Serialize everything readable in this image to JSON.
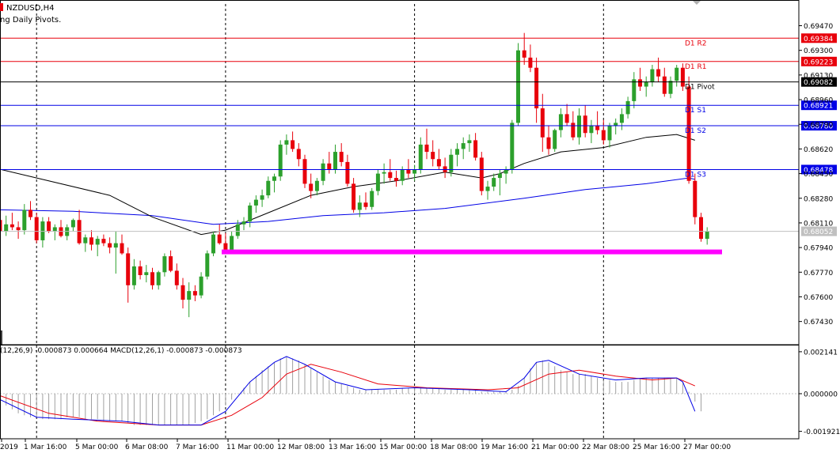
{
  "window": {
    "symbol": "NZDUSD,H4",
    "indicator_label": "ng Daily Pivots.",
    "macd_label": "(12,26,9) -0.000873 0.000664 MACD(12,26,1) -0.000873 -0.000873"
  },
  "colors": {
    "bull": "#2ca02c",
    "bear": "#e8000b",
    "resistance": "#e8000b",
    "support": "#0000e6",
    "pivot": "#000000",
    "ma_fast": "#000000",
    "ma_slow": "#0000e6",
    "support_zone": "#ff00ff",
    "macd_line": "#0000e6",
    "signal_line": "#e8000b",
    "histogram": "#a0a0a0"
  },
  "chart_data": {
    "type": "candlestick",
    "price_axis_ticks": [
      0.6947,
      0.693,
      0.6913,
      0.6896,
      0.6879,
      0.6862,
      0.6845,
      0.6828,
      0.6811,
      0.6794,
      0.6777,
      0.676,
      0.6743
    ],
    "price_axis_ticks_text": [
      "0.69470",
      "0.69300",
      "0.69130",
      "0.68960",
      "0.68790",
      "0.68620",
      "0.68450",
      "0.68280",
      "0.68110",
      "0.67940",
      "0.67770",
      "0.67600",
      "0.67430"
    ],
    "ylim": [
      0.6727,
      0.6962
    ],
    "time_ticks": [
      "2019",
      "1 Mar 16:00",
      "5 Mar 00:00",
      "6 Mar 08:00",
      "7 Mar 16:00",
      "11 Mar 00:00",
      "12 Mar 08:00",
      "13 Mar 16:00",
      "15 Mar 00:00",
      "18 Mar 08:00",
      "19 Mar 16:00",
      "21 Mar 00:00",
      "22 Mar 08:00",
      "25 Mar 16:00",
      "27 Mar 00:00"
    ],
    "levels": [
      {
        "name": "D1 R2",
        "value": 0.69384,
        "value_text": "0.69384",
        "kind": "resistance"
      },
      {
        "name": "D1 R1",
        "value": 0.69223,
        "value_text": "0.69223",
        "kind": "resistance"
      },
      {
        "name": "D1 Pivot",
        "value": 0.69082,
        "value_text": "0.69082",
        "kind": "pivot"
      },
      {
        "name": "D1 S1",
        "value": 0.68921,
        "value_text": "0.68921",
        "kind": "support"
      },
      {
        "name": "D1 S2",
        "value": 0.6878,
        "value_text": "0.68780",
        "kind": "support"
      },
      {
        "name": "D1 S3",
        "value": 0.68478,
        "value_text": "0.68478",
        "kind": "support"
      }
    ],
    "current_price": 0.68052,
    "current_price_text": "0.68052",
    "support_zone_price": 0.6791,
    "candles": [
      [
        0.6813,
        0.682,
        0.6806,
        0.6805
      ],
      [
        0.6805,
        0.6816,
        0.6802,
        0.681
      ],
      [
        0.681,
        0.6818,
        0.6806,
        0.6808
      ],
      [
        0.6808,
        0.6812,
        0.68,
        0.6806
      ],
      [
        0.6806,
        0.6824,
        0.6803,
        0.682
      ],
      [
        0.682,
        0.6826,
        0.6813,
        0.6815
      ],
      [
        0.6815,
        0.6818,
        0.6797,
        0.6799
      ],
      [
        0.6799,
        0.6815,
        0.6794,
        0.6812
      ],
      [
        0.6812,
        0.6815,
        0.6804,
        0.6805
      ],
      [
        0.6805,
        0.681,
        0.6799,
        0.6808
      ],
      [
        0.6808,
        0.6813,
        0.6801,
        0.6802
      ],
      [
        0.6802,
        0.681,
        0.6799,
        0.6808
      ],
      [
        0.6808,
        0.6814,
        0.6805,
        0.6813
      ],
      [
        0.6813,
        0.682,
        0.6796,
        0.6797
      ],
      [
        0.6797,
        0.6803,
        0.6791,
        0.6801
      ],
      [
        0.6801,
        0.6806,
        0.6792,
        0.6796
      ],
      [
        0.6796,
        0.6802,
        0.6788,
        0.68
      ],
      [
        0.68,
        0.6803,
        0.6795,
        0.6797
      ],
      [
        0.6797,
        0.6801,
        0.679,
        0.6794
      ],
      [
        0.6794,
        0.6805,
        0.6776,
        0.6797
      ],
      [
        0.6797,
        0.6803,
        0.6789,
        0.679
      ],
      [
        0.679,
        0.6794,
        0.6756,
        0.6768
      ],
      [
        0.6768,
        0.6786,
        0.6765,
        0.6781
      ],
      [
        0.6781,
        0.6785,
        0.6772,
        0.6775
      ],
      [
        0.6775,
        0.6782,
        0.677,
        0.6777
      ],
      [
        0.6777,
        0.678,
        0.6765,
        0.6768
      ],
      [
        0.6768,
        0.6778,
        0.6765,
        0.6777
      ],
      [
        0.6777,
        0.679,
        0.6774,
        0.6788
      ],
      [
        0.6788,
        0.6792,
        0.6777,
        0.6778
      ],
      [
        0.6778,
        0.6783,
        0.6765,
        0.6768
      ],
      [
        0.6768,
        0.6773,
        0.6752,
        0.6758
      ],
      [
        0.6758,
        0.677,
        0.6746,
        0.6764
      ],
      [
        0.6764,
        0.6768,
        0.6757,
        0.6761
      ],
      [
        0.6761,
        0.6777,
        0.6759,
        0.6774
      ],
      [
        0.6774,
        0.6792,
        0.6772,
        0.679
      ],
      [
        0.679,
        0.6805,
        0.6788,
        0.6803
      ],
      [
        0.6803,
        0.681,
        0.6796,
        0.6797
      ],
      [
        0.6797,
        0.6804,
        0.679,
        0.6792
      ],
      [
        0.6792,
        0.6805,
        0.679,
        0.6802
      ],
      [
        0.6802,
        0.6813,
        0.68,
        0.681
      ],
      [
        0.681,
        0.6815,
        0.6806,
        0.6812
      ],
      [
        0.6812,
        0.6825,
        0.6808,
        0.6823
      ],
      [
        0.6823,
        0.683,
        0.6818,
        0.6827
      ],
      [
        0.6827,
        0.6834,
        0.6822,
        0.683
      ],
      [
        0.683,
        0.6843,
        0.6828,
        0.684
      ],
      [
        0.684,
        0.6845,
        0.6832,
        0.6843
      ],
      [
        0.6843,
        0.6868,
        0.684,
        0.6865
      ],
      [
        0.6865,
        0.6872,
        0.6858,
        0.6868
      ],
      [
        0.6868,
        0.6874,
        0.686,
        0.6862
      ],
      [
        0.6862,
        0.6866,
        0.685,
        0.6855
      ],
      [
        0.6855,
        0.6858,
        0.6835,
        0.6838
      ],
      [
        0.6838,
        0.6845,
        0.6828,
        0.6833
      ],
      [
        0.6833,
        0.6842,
        0.683,
        0.684
      ],
      [
        0.684,
        0.6855,
        0.6837,
        0.6852
      ],
      [
        0.6852,
        0.686,
        0.6845,
        0.6848
      ],
      [
        0.6848,
        0.6865,
        0.6845,
        0.686
      ],
      [
        0.686,
        0.6866,
        0.685,
        0.6853
      ],
      [
        0.6853,
        0.6858,
        0.6836,
        0.6838
      ],
      [
        0.6838,
        0.6842,
        0.6818,
        0.682
      ],
      [
        0.682,
        0.683,
        0.6815,
        0.6825
      ],
      [
        0.6825,
        0.6832,
        0.682,
        0.6822
      ],
      [
        0.6822,
        0.6835,
        0.682,
        0.6833
      ],
      [
        0.6833,
        0.6848,
        0.683,
        0.6845
      ],
      [
        0.6845,
        0.6852,
        0.6838,
        0.6846
      ],
      [
        0.6846,
        0.6855,
        0.684,
        0.6842
      ],
      [
        0.6842,
        0.6847,
        0.6836,
        0.684
      ],
      [
        0.684,
        0.685,
        0.6837,
        0.6848
      ],
      [
        0.6848,
        0.6855,
        0.6842,
        0.6845
      ],
      [
        0.6845,
        0.6851,
        0.684,
        0.6848
      ],
      [
        0.6848,
        0.687,
        0.6845,
        0.6865
      ],
      [
        0.6865,
        0.6876,
        0.6855,
        0.686
      ],
      [
        0.686,
        0.6868,
        0.685,
        0.6855
      ],
      [
        0.6855,
        0.6862,
        0.6848,
        0.685
      ],
      [
        0.685,
        0.6856,
        0.6842,
        0.6846
      ],
      [
        0.6846,
        0.6862,
        0.6843,
        0.6858
      ],
      [
        0.6858,
        0.6866,
        0.685,
        0.6862
      ],
      [
        0.6862,
        0.687,
        0.6855,
        0.6866
      ],
      [
        0.6866,
        0.6872,
        0.686,
        0.6868
      ],
      [
        0.6868,
        0.6873,
        0.6854,
        0.6856
      ],
      [
        0.6856,
        0.686,
        0.683,
        0.6833
      ],
      [
        0.6833,
        0.684,
        0.6827,
        0.6836
      ],
      [
        0.6836,
        0.6845,
        0.6833,
        0.6842
      ],
      [
        0.6842,
        0.6848,
        0.683,
        0.6845
      ],
      [
        0.6845,
        0.685,
        0.6838,
        0.6848
      ],
      [
        0.6848,
        0.6882,
        0.6845,
        0.688
      ],
      [
        0.688,
        0.6935,
        0.6878,
        0.693
      ],
      [
        0.693,
        0.6942,
        0.692,
        0.6925
      ],
      [
        0.6925,
        0.6934,
        0.6915,
        0.6918
      ],
      [
        0.6918,
        0.6925,
        0.688,
        0.689
      ],
      [
        0.689,
        0.69,
        0.686,
        0.687
      ],
      [
        0.687,
        0.6878,
        0.6858,
        0.6862
      ],
      [
        0.6862,
        0.6876,
        0.686,
        0.6875
      ],
      [
        0.6875,
        0.689,
        0.687,
        0.6886
      ],
      [
        0.6886,
        0.6893,
        0.6878,
        0.688
      ],
      [
        0.688,
        0.6888,
        0.6868,
        0.687
      ],
      [
        0.687,
        0.689,
        0.6865,
        0.6885
      ],
      [
        0.6885,
        0.6892,
        0.687,
        0.6873
      ],
      [
        0.6873,
        0.6882,
        0.6866,
        0.6878
      ],
      [
        0.6878,
        0.6888,
        0.6872,
        0.6875
      ],
      [
        0.6875,
        0.6882,
        0.6865,
        0.6868
      ],
      [
        0.6868,
        0.688,
        0.6863,
        0.6878
      ],
      [
        0.6878,
        0.6883,
        0.6872,
        0.688
      ],
      [
        0.688,
        0.689,
        0.6875,
        0.6886
      ],
      [
        0.6886,
        0.6898,
        0.6883,
        0.6895
      ],
      [
        0.6895,
        0.6915,
        0.689,
        0.691
      ],
      [
        0.691,
        0.6918,
        0.6902,
        0.6905
      ],
      [
        0.6905,
        0.6912,
        0.6898,
        0.6908
      ],
      [
        0.6908,
        0.692,
        0.6905,
        0.6917
      ],
      [
        0.6917,
        0.6925,
        0.6908,
        0.6912
      ],
      [
        0.6912,
        0.6918,
        0.6898,
        0.69
      ],
      [
        0.69,
        0.6912,
        0.6897,
        0.6909
      ],
      [
        0.6909,
        0.692,
        0.6905,
        0.6918
      ],
      [
        0.6918,
        0.6921,
        0.6902,
        0.6905
      ],
      [
        0.6905,
        0.6912,
        0.6838,
        0.684
      ],
      [
        0.684,
        0.6845,
        0.681,
        0.6815
      ],
      [
        0.6815,
        0.6818,
        0.6798,
        0.68
      ],
      [
        0.68,
        0.6808,
        0.6796,
        0.6805
      ]
    ],
    "ma_fast": [
      [
        0,
        0.6848
      ],
      [
        18,
        0.683
      ],
      [
        25,
        0.6815
      ],
      [
        33,
        0.6803
      ],
      [
        37,
        0.6806
      ],
      [
        44,
        0.6818
      ],
      [
        51,
        0.683
      ],
      [
        58,
        0.6836
      ],
      [
        65,
        0.684
      ],
      [
        73,
        0.6846
      ],
      [
        79,
        0.6842
      ],
      [
        82,
        0.6845
      ],
      [
        86,
        0.6852
      ],
      [
        92,
        0.686
      ],
      [
        99,
        0.6863
      ],
      [
        106,
        0.687
      ],
      [
        111,
        0.6872
      ],
      [
        114,
        0.6868
      ]
    ],
    "ma_slow": [
      [
        0,
        0.682
      ],
      [
        12,
        0.6819
      ],
      [
        25,
        0.6816
      ],
      [
        35,
        0.681
      ],
      [
        44,
        0.6812
      ],
      [
        53,
        0.6816
      ],
      [
        63,
        0.6818
      ],
      [
        73,
        0.6821
      ],
      [
        86,
        0.6828
      ],
      [
        96,
        0.6834
      ],
      [
        106,
        0.6838
      ],
      [
        113,
        0.6842
      ],
      [
        114,
        0.6841
      ]
    ],
    "macd": {
      "ticks": [
        0.002141,
        0.0,
        -0.001921
      ],
      "ticks_text": [
        "0.002141",
        "0.000000",
        "-0.001921"
      ],
      "ylim": [
        -0.0023,
        0.0025
      ],
      "histogram": [
        -0.0003,
        -0.0006,
        -0.0008,
        -0.001,
        -0.0011,
        -0.0012,
        -0.0012,
        -0.0013,
        -0.0013,
        -0.0013,
        -0.0013,
        -0.0012,
        -0.0012,
        -0.0012,
        -0.0013,
        -0.0013,
        -0.0013,
        -0.0014,
        -0.0014,
        -0.0014,
        -0.0014,
        -0.0015,
        -0.0016,
        -0.0016,
        -0.0016,
        -0.0016,
        -0.0016,
        -0.0016,
        -0.0016,
        -0.0016,
        -0.0016,
        -0.0016,
        -0.0015,
        -0.0014,
        -0.0013,
        -0.0011,
        -0.0009,
        -0.0006,
        -0.0003,
        0.0,
        0.0003,
        0.0006,
        0.0009,
        0.0012,
        0.0014,
        0.0016,
        0.0018,
        0.0019,
        0.0018,
        0.0017,
        0.0015,
        0.0013,
        0.0011,
        0.0009,
        0.0007,
        0.0006,
        0.0005,
        0.0004,
        0.0003,
        0.0002,
        0.0002,
        0.0002,
        0.0002,
        0.0002,
        0.0002,
        0.0002,
        0.0003,
        0.0003,
        0.0003,
        0.0003,
        0.0003,
        0.0003,
        0.0003,
        0.0002,
        0.0002,
        0.0002,
        0.0002,
        0.0002,
        0.0002,
        0.0001,
        0.0001,
        0.0001,
        0.0001,
        0.0001,
        0.0002,
        0.0004,
        0.0008,
        0.0013,
        0.0016,
        0.0017,
        0.0016,
        0.0014,
        0.0012,
        0.0011,
        0.001,
        0.001,
        0.001,
        0.0009,
        0.0008,
        0.0007,
        0.0007,
        0.0006,
        0.0006,
        0.0006,
        0.0007,
        0.0008,
        0.0008,
        0.0008,
        0.0008,
        0.0008,
        0.0008,
        0.0008,
        0.0006,
        0.0001,
        -0.0004,
        -0.0009
      ],
      "macd_line": [
        [
          0,
          -0.0003
        ],
        [
          6,
          -0.0012
        ],
        [
          12,
          -0.0013
        ],
        [
          20,
          -0.0014
        ],
        [
          26,
          -0.0016
        ],
        [
          33,
          -0.0016
        ],
        [
          37,
          -0.0009
        ],
        [
          41,
          0.0006
        ],
        [
          45,
          0.0016
        ],
        [
          47,
          0.0019
        ],
        [
          50,
          0.0015
        ],
        [
          55,
          0.0006
        ],
        [
          60,
          0.0002
        ],
        [
          68,
          0.0003
        ],
        [
          77,
          0.0002
        ],
        [
          83,
          0.0001
        ],
        [
          86,
          0.0008
        ],
        [
          88,
          0.0016
        ],
        [
          90,
          0.0017
        ],
        [
          95,
          0.001
        ],
        [
          101,
          0.0007
        ],
        [
          106,
          0.0008
        ],
        [
          111,
          0.0008
        ],
        [
          112,
          0.0006
        ],
        [
          114,
          -0.0009
        ]
      ],
      "signal_line": [
        [
          0,
          -0.0001
        ],
        [
          8,
          -0.001
        ],
        [
          16,
          -0.0014
        ],
        [
          26,
          -0.0016
        ],
        [
          33,
          -0.0016
        ],
        [
          38,
          -0.0011
        ],
        [
          43,
          -0.0002
        ],
        [
          47,
          0.001
        ],
        [
          51,
          0.0015
        ],
        [
          56,
          0.0011
        ],
        [
          62,
          0.0005
        ],
        [
          70,
          0.0003
        ],
        [
          80,
          0.0002
        ],
        [
          85,
          0.0003
        ],
        [
          90,
          0.001
        ],
        [
          95,
          0.0012
        ],
        [
          101,
          0.0009
        ],
        [
          107,
          0.0007
        ],
        [
          111,
          0.0008
        ],
        [
          114,
          0.0004
        ]
      ]
    }
  }
}
